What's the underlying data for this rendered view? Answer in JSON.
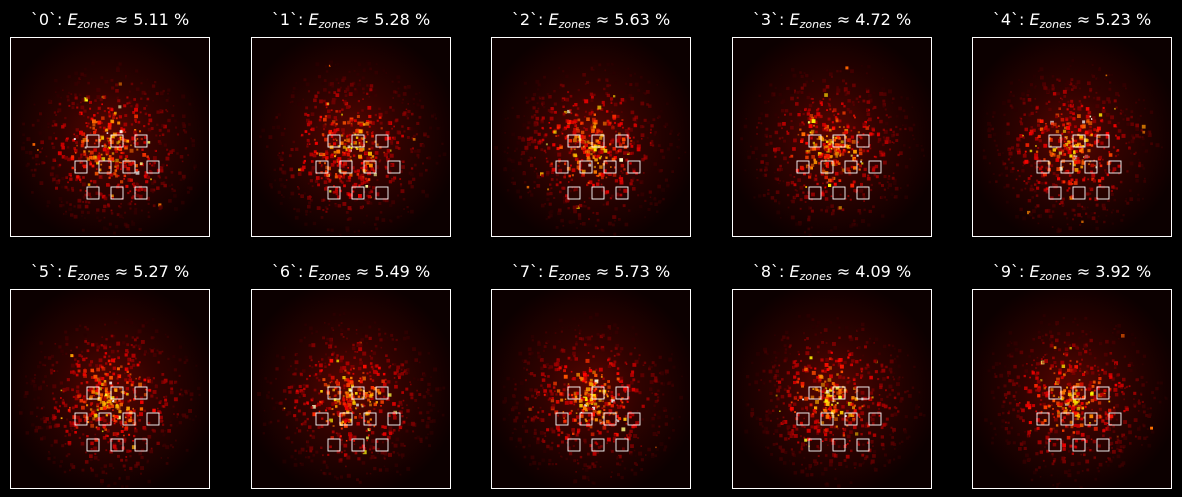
{
  "figure": {
    "background": "#000000",
    "text_color": "#ffffff",
    "colormap": "hot",
    "approx_symbol": "≈",
    "energy_symbol": "E",
    "energy_subscript": "zones",
    "unit": "%",
    "panels": [
      {
        "label": "`0`",
        "value": "5.11"
      },
      {
        "label": "`1`",
        "value": "5.28"
      },
      {
        "label": "`2`",
        "value": "5.63"
      },
      {
        "label": "`3`",
        "value": "4.72"
      },
      {
        "label": "`4`",
        "value": "5.23"
      },
      {
        "label": "`5`",
        "value": "5.27"
      },
      {
        "label": "`6`",
        "value": "5.49"
      },
      {
        "label": "`7`",
        "value": "5.73"
      },
      {
        "label": "`8`",
        "value": "4.09"
      },
      {
        "label": "`9`",
        "value": "3.92"
      }
    ],
    "detector_zone_count": 10
  }
}
